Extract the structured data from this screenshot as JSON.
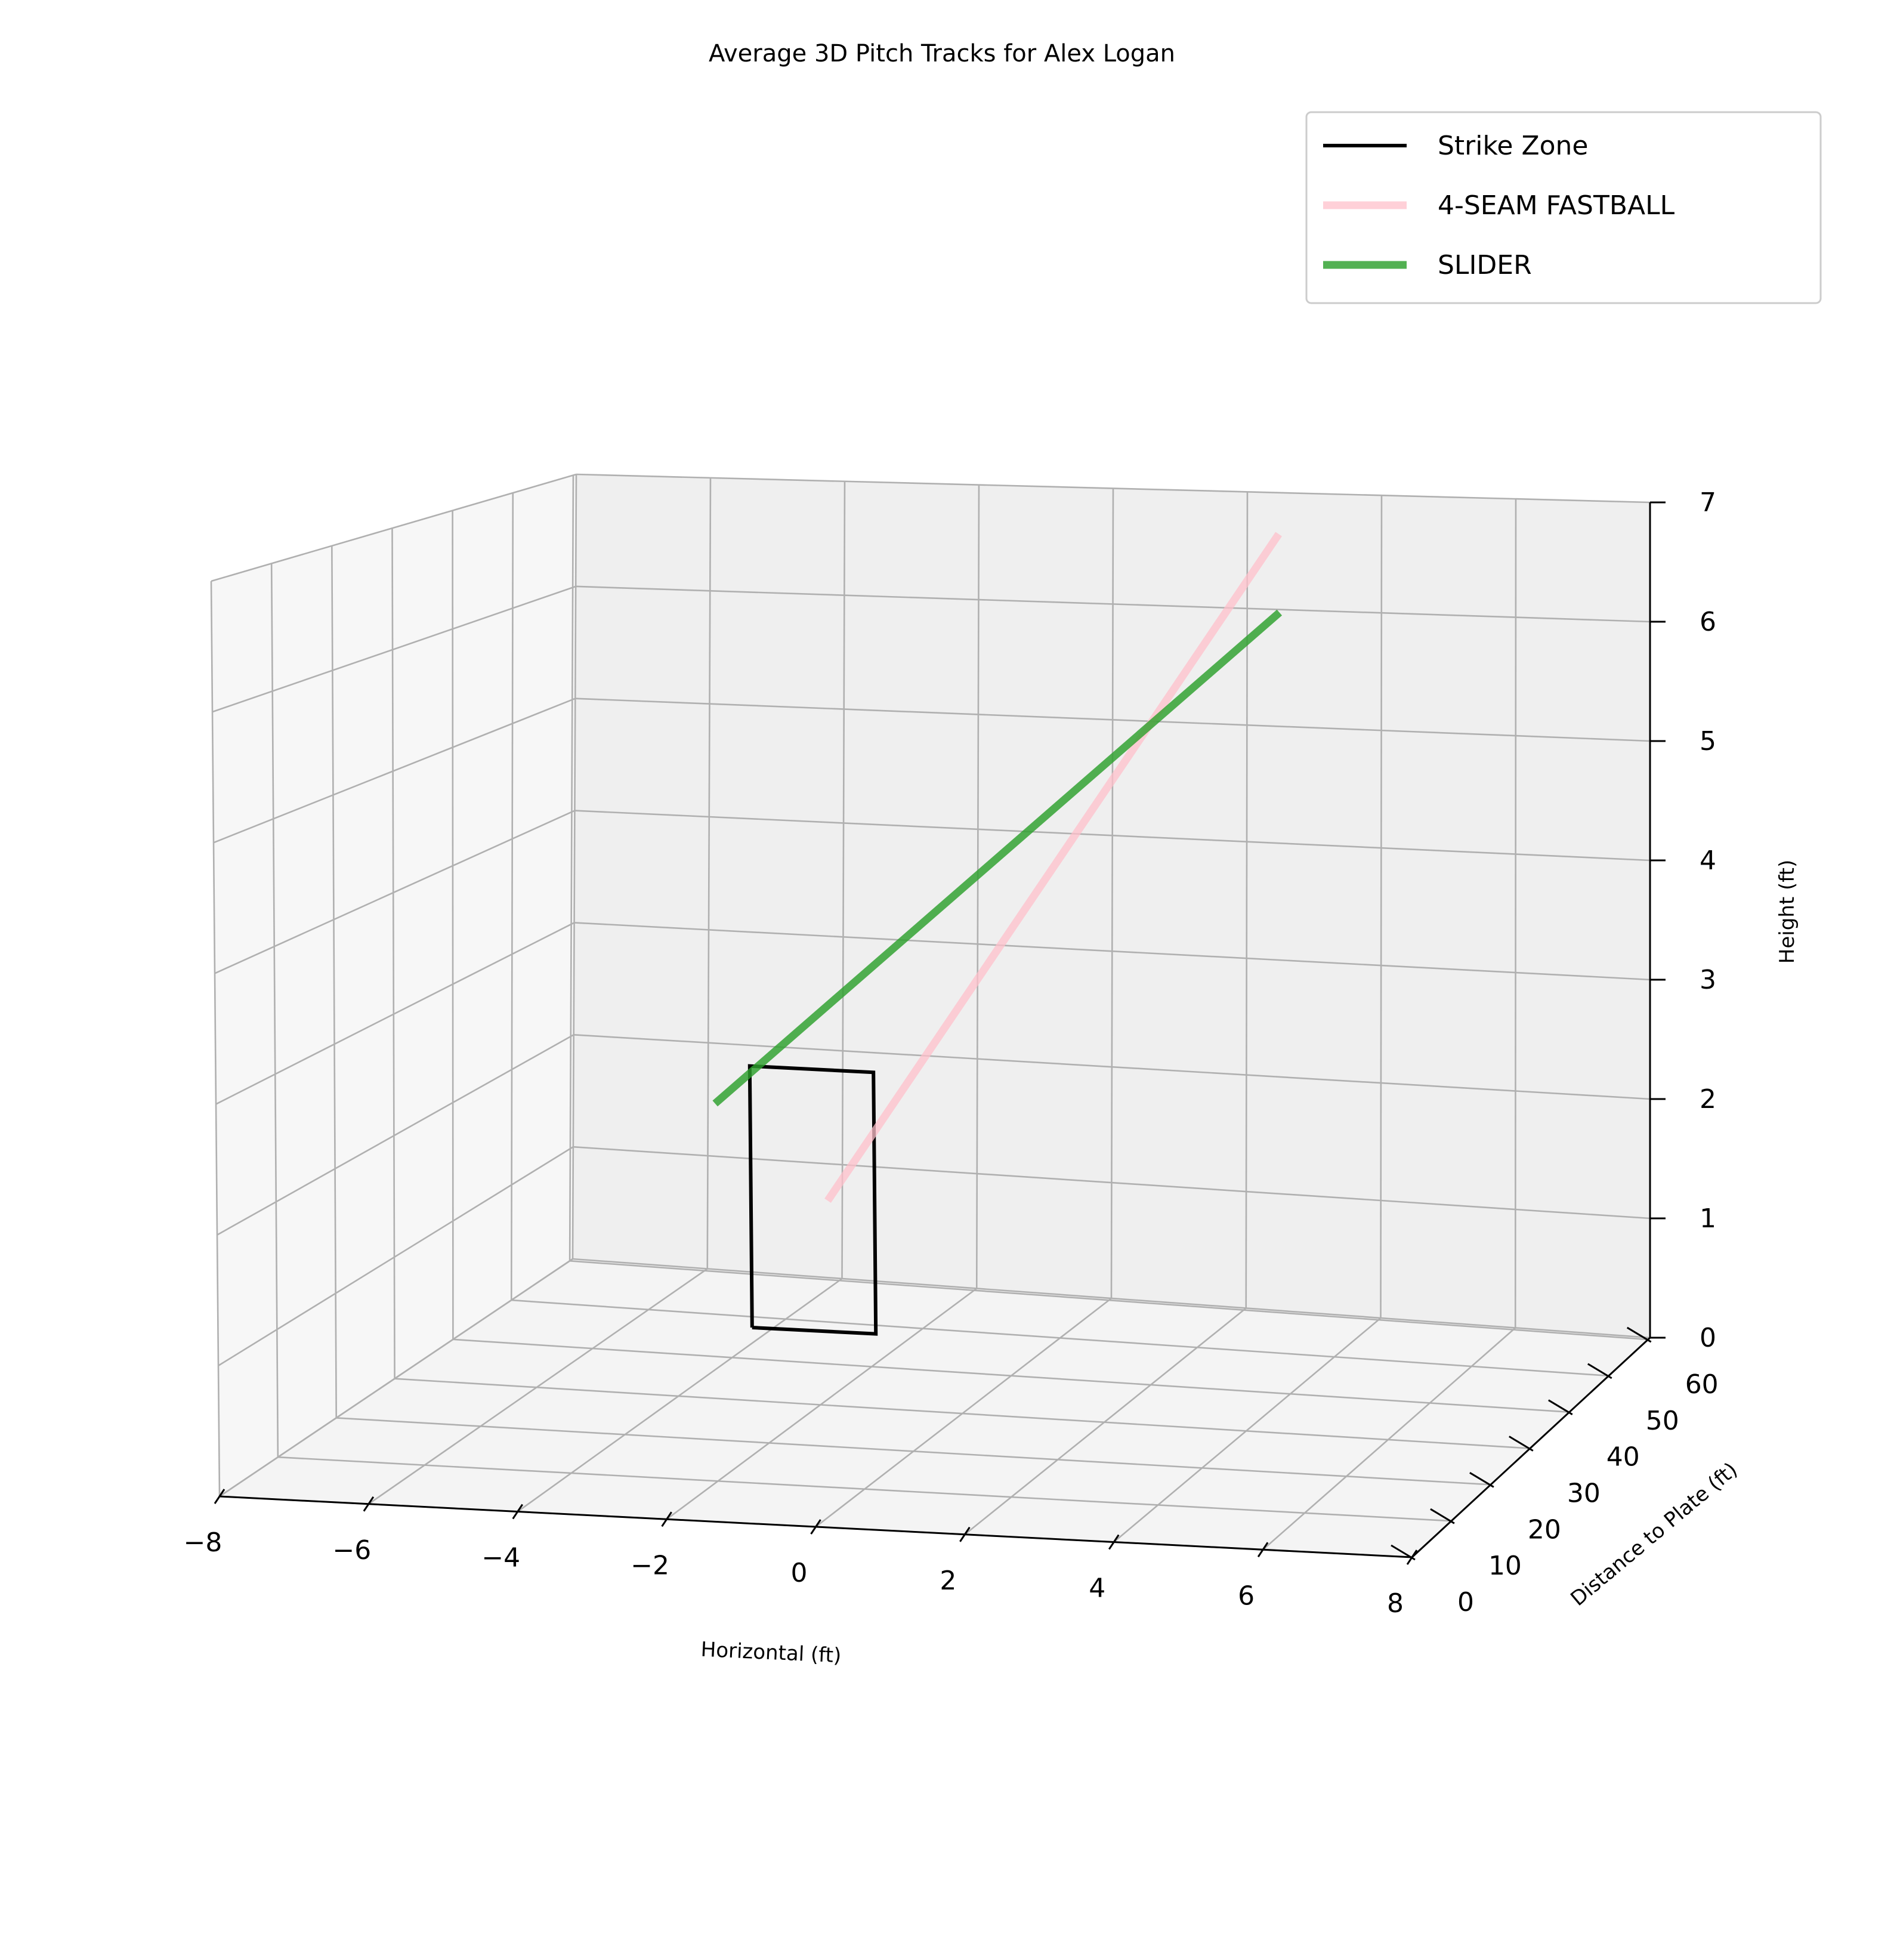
{
  "figure": {
    "title": "Average 3D Pitch Tracks for Alex Logan"
  },
  "chart_data": {
    "type": "line",
    "projection": "3d",
    "title": "Average 3D Pitch Tracks for Alex Logan",
    "xlabel": "Horizontal (ft)",
    "ylabel": "Distance to Plate (ft)",
    "zlabel": "Height (ft)",
    "xlim": [
      -8,
      8
    ],
    "ylim": [
      0,
      60.5
    ],
    "zlim": [
      0,
      7
    ],
    "x_ticks": [
      -8,
      -6,
      -4,
      -2,
      0,
      2,
      4,
      6,
      8
    ],
    "x_tick_labels": [
      "−8",
      "−6",
      "−4",
      "−2",
      "0",
      "2",
      "4",
      "6",
      "8"
    ],
    "y_ticks": [
      0,
      10,
      20,
      30,
      40,
      50,
      60
    ],
    "y_tick_labels": [
      "0",
      "10",
      "20",
      "30",
      "40",
      "50",
      "60"
    ],
    "z_ticks": [
      0,
      1,
      2,
      3,
      4,
      5,
      6,
      7
    ],
    "z_tick_labels": [
      "0",
      "1",
      "2",
      "3",
      "4",
      "5",
      "6",
      "7"
    ],
    "grid": true,
    "legend_position": "top-right",
    "series": [
      {
        "name": "Strike Zone",
        "color": "#000000",
        "points": [
          [
            -0.83,
            0,
            1.5
          ],
          [
            0.83,
            0,
            1.5
          ],
          [
            0.83,
            0,
            3.5
          ],
          [
            -0.83,
            0,
            3.5
          ],
          [
            -0.83,
            0,
            1.5
          ]
        ]
      },
      {
        "name": "4-SEAM FASTBALL",
        "color": "#ffc0cb",
        "points": [
          [
            0.2,
            0,
            2.5
          ],
          [
            2.0,
            55,
            6.0
          ]
        ]
      },
      {
        "name": "SLIDER",
        "color": "#2ca02c",
        "points": [
          [
            -1.3,
            0,
            3.2
          ],
          [
            2.0,
            55,
            5.4
          ]
        ]
      }
    ]
  }
}
